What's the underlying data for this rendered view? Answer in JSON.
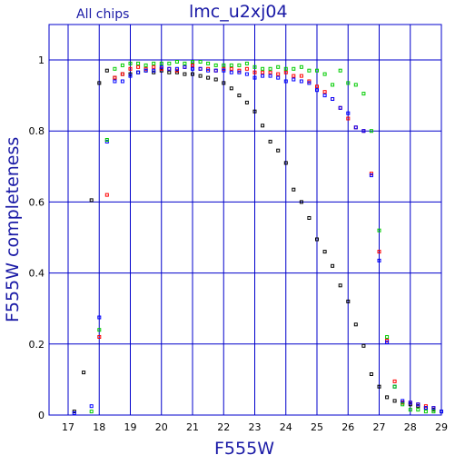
{
  "header": {
    "subtitle": "All chips",
    "title": "lmc_u2xj04"
  },
  "chart_data": {
    "type": "scatter",
    "title": "lmc_u2xj04",
    "subtitle": "All chips",
    "xlabel": "F555W",
    "ylabel": "F555W completeness",
    "xlim": [
      16.5,
      29
    ],
    "ylim": [
      0,
      1.1
    ],
    "xticks": [
      17,
      18,
      19,
      20,
      21,
      22,
      23,
      24,
      25,
      26,
      27,
      28,
      29
    ],
    "yticks": [
      0,
      0.2,
      0.4,
      0.6,
      0.8,
      1
    ],
    "ytick_labels": [
      "0",
      "0.2",
      "0.4",
      "0.6",
      "0.8",
      "1"
    ],
    "grid": true,
    "colors": {
      "axis": "#0000cc",
      "grid": "#0000cc",
      "text": "#1a1aa6"
    },
    "series": [
      {
        "color": "#000000",
        "x": [
          17.2,
          17.5,
          17.75,
          18.0,
          18.25,
          18.5,
          18.75,
          19.0,
          19.25,
          19.5,
          19.75,
          20.0,
          20.25,
          20.5,
          20.75,
          21.0,
          21.25,
          21.5,
          21.75,
          22.0,
          22.25,
          22.5,
          22.75,
          23.0,
          23.25,
          23.5,
          23.75,
          24.0,
          24.25,
          24.5,
          24.75,
          25.0,
          25.25,
          25.5,
          25.75,
          26.0,
          26.25,
          26.5,
          26.75,
          27.0,
          27.25,
          27.5,
          27.75,
          28.0,
          28.25,
          28.5,
          28.75,
          29.0
        ],
        "y": [
          0.01,
          0.12,
          0.605,
          0.935,
          0.97,
          0.95,
          0.96,
          0.96,
          0.965,
          0.97,
          0.965,
          0.97,
          0.965,
          0.965,
          0.96,
          0.96,
          0.955,
          0.95,
          0.945,
          0.935,
          0.92,
          0.9,
          0.88,
          0.855,
          0.815,
          0.77,
          0.745,
          0.71,
          0.635,
          0.6,
          0.555,
          0.495,
          0.46,
          0.42,
          0.365,
          0.32,
          0.255,
          0.195,
          0.115,
          0.08,
          0.05,
          0.04,
          0.035,
          0.03,
          0.025,
          0.02,
          0.015,
          0.01
        ]
      },
      {
        "color": "#ff0000",
        "x": [
          18.0,
          18.25,
          18.5,
          18.75,
          19.0,
          19.25,
          19.5,
          19.75,
          20.0,
          20.25,
          20.5,
          20.75,
          21.0,
          21.25,
          21.5,
          21.75,
          22.0,
          22.25,
          22.5,
          22.75,
          23.0,
          23.25,
          23.5,
          23.75,
          24.0,
          24.25,
          24.5,
          24.75,
          25.0,
          25.25,
          25.5,
          25.75,
          26.0,
          26.25,
          26.5,
          26.75,
          27.0,
          27.25,
          27.5,
          27.75,
          28.0,
          28.25,
          28.5,
          28.75
        ],
        "y": [
          0.22,
          0.62,
          0.95,
          0.96,
          0.975,
          0.98,
          0.975,
          0.98,
          0.975,
          0.975,
          0.97,
          0.98,
          0.985,
          0.975,
          0.975,
          0.97,
          0.975,
          0.975,
          0.97,
          0.975,
          0.965,
          0.965,
          0.965,
          0.96,
          0.965,
          0.955,
          0.955,
          0.94,
          0.925,
          0.91,
          0.89,
          0.865,
          0.835,
          0.81,
          0.8,
          0.68,
          0.46,
          0.21,
          0.095,
          0.035,
          0.035,
          0.03,
          0.025,
          0.02
        ]
      },
      {
        "color": "#0000ff",
        "x": [
          17.2,
          17.75,
          18.0,
          18.25,
          18.5,
          18.75,
          19.0,
          19.25,
          19.5,
          19.75,
          20.0,
          20.25,
          20.5,
          20.75,
          21.0,
          21.25,
          21.5,
          21.75,
          22.0,
          22.25,
          22.5,
          22.75,
          23.0,
          23.25,
          23.5,
          23.75,
          24.0,
          24.25,
          24.5,
          24.75,
          25.0,
          25.25,
          25.5,
          25.75,
          26.0,
          26.25,
          26.5,
          26.75,
          27.0,
          27.25,
          27.5,
          27.75,
          28.0,
          28.25,
          28.5,
          28.75,
          29.0
        ],
        "y": [
          0.005,
          0.025,
          0.275,
          0.77,
          0.94,
          0.94,
          0.955,
          0.965,
          0.97,
          0.97,
          0.98,
          0.975,
          0.975,
          0.98,
          0.975,
          0.975,
          0.97,
          0.97,
          0.97,
          0.965,
          0.965,
          0.96,
          0.95,
          0.955,
          0.955,
          0.95,
          0.94,
          0.945,
          0.94,
          0.935,
          0.915,
          0.9,
          0.89,
          0.865,
          0.85,
          0.81,
          0.8,
          0.675,
          0.435,
          0.205,
          0.08,
          0.04,
          0.035,
          0.03,
          0.02,
          0.02,
          0.01
        ]
      },
      {
        "color": "#00cc00",
        "x": [
          17.75,
          18.0,
          18.25,
          18.5,
          18.75,
          19.0,
          19.25,
          19.5,
          19.75,
          20.0,
          20.25,
          20.5,
          20.75,
          21.0,
          21.25,
          21.5,
          21.75,
          22.0,
          22.25,
          22.5,
          22.75,
          23.0,
          23.25,
          23.5,
          23.75,
          24.0,
          24.25,
          24.5,
          24.75,
          25.0,
          25.25,
          25.5,
          25.75,
          26.0,
          26.25,
          26.5,
          26.75,
          27.0,
          27.25,
          27.5,
          27.75,
          28.0,
          28.25,
          28.5,
          28.75
        ],
        "y": [
          0.01,
          0.24,
          0.775,
          0.975,
          0.985,
          0.99,
          0.99,
          0.985,
          0.99,
          0.99,
          0.99,
          0.995,
          0.99,
          0.995,
          0.995,
          0.99,
          0.985,
          0.985,
          0.985,
          0.985,
          0.99,
          0.98,
          0.975,
          0.975,
          0.98,
          0.975,
          0.975,
          0.98,
          0.97,
          0.97,
          0.96,
          0.93,
          0.97,
          0.935,
          0.93,
          0.905,
          0.8,
          0.52,
          0.22,
          0.08,
          0.03,
          0.015,
          0.015,
          0.01,
          0.01
        ]
      }
    ]
  }
}
